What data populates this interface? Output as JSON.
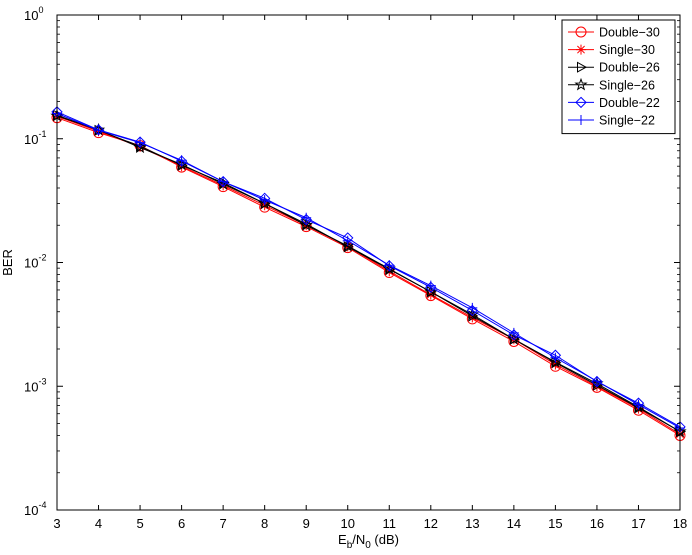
{
  "chart_data": {
    "type": "line",
    "title": "",
    "xlabel": {
      "main": "E",
      "sub1": "b",
      "mid": "/N",
      "sub2": "0",
      "tail": " (dB)"
    },
    "ylabel": "BER",
    "xlim": [
      3,
      18
    ],
    "ylim": [
      0.0001,
      1
    ],
    "yscale": "log",
    "grid": false,
    "legend_position": "top-right",
    "x": [
      3,
      4,
      5,
      6,
      7,
      8,
      9,
      10,
      11,
      12,
      13,
      14,
      15,
      16,
      17,
      18
    ],
    "x_ticks": [
      "3",
      "4",
      "5",
      "6",
      "7",
      "8",
      "9",
      "10",
      "11",
      "12",
      "13",
      "14",
      "15",
      "16",
      "17",
      "18"
    ],
    "y_ticks": [
      {
        "base": "10",
        "exp": "-4"
      },
      {
        "base": "10",
        "exp": "-3"
      },
      {
        "base": "10",
        "exp": "-2"
      },
      {
        "base": "10",
        "exp": "-1"
      },
      {
        "base": "10",
        "exp": "0"
      }
    ],
    "series": [
      {
        "name": "Double−30",
        "color": "#ff0000",
        "marker": "circle",
        "values": [
          0.148,
          0.112,
          0.088,
          0.059,
          0.041,
          0.028,
          0.0195,
          0.0132,
          0.0083,
          0.0054,
          0.0035,
          0.0023,
          0.00145,
          0.00098,
          0.00064,
          0.0004
        ]
      },
      {
        "name": "Single−30",
        "color": "#ff0000",
        "marker": "asterisk",
        "values": [
          0.152,
          0.115,
          0.086,
          0.06,
          0.042,
          0.029,
          0.02,
          0.0135,
          0.0085,
          0.0055,
          0.0036,
          0.0024,
          0.0015,
          0.001,
          0.00066,
          0.00041
        ]
      },
      {
        "name": "Double−26",
        "color": "#000000",
        "marker": "triangle-right",
        "values": [
          0.155,
          0.117,
          0.087,
          0.061,
          0.044,
          0.03,
          0.0205,
          0.0134,
          0.0088,
          0.0058,
          0.0037,
          0.0024,
          0.00155,
          0.00102,
          0.00067,
          0.00043
        ]
      },
      {
        "name": "Single−26",
        "color": "#000000",
        "marker": "pentagram",
        "values": [
          0.153,
          0.118,
          0.085,
          0.062,
          0.043,
          0.03,
          0.02,
          0.0136,
          0.0089,
          0.0058,
          0.0038,
          0.0024,
          0.00157,
          0.00105,
          0.00068,
          0.00043
        ]
      },
      {
        "name": "Double−22",
        "color": "#0000ff",
        "marker": "diamond",
        "values": [
          0.165,
          0.118,
          0.094,
          0.066,
          0.045,
          0.033,
          0.0222,
          0.0158,
          0.0094,
          0.0063,
          0.0041,
          0.0026,
          0.00178,
          0.00109,
          0.00073,
          0.00047
        ]
      },
      {
        "name": "Single−22",
        "color": "#0000ff",
        "marker": "plus",
        "values": [
          0.16,
          0.117,
          0.093,
          0.067,
          0.045,
          0.032,
          0.023,
          0.015,
          0.0095,
          0.0065,
          0.0043,
          0.0027,
          0.0017,
          0.0011,
          0.00071,
          0.00046
        ]
      }
    ]
  }
}
